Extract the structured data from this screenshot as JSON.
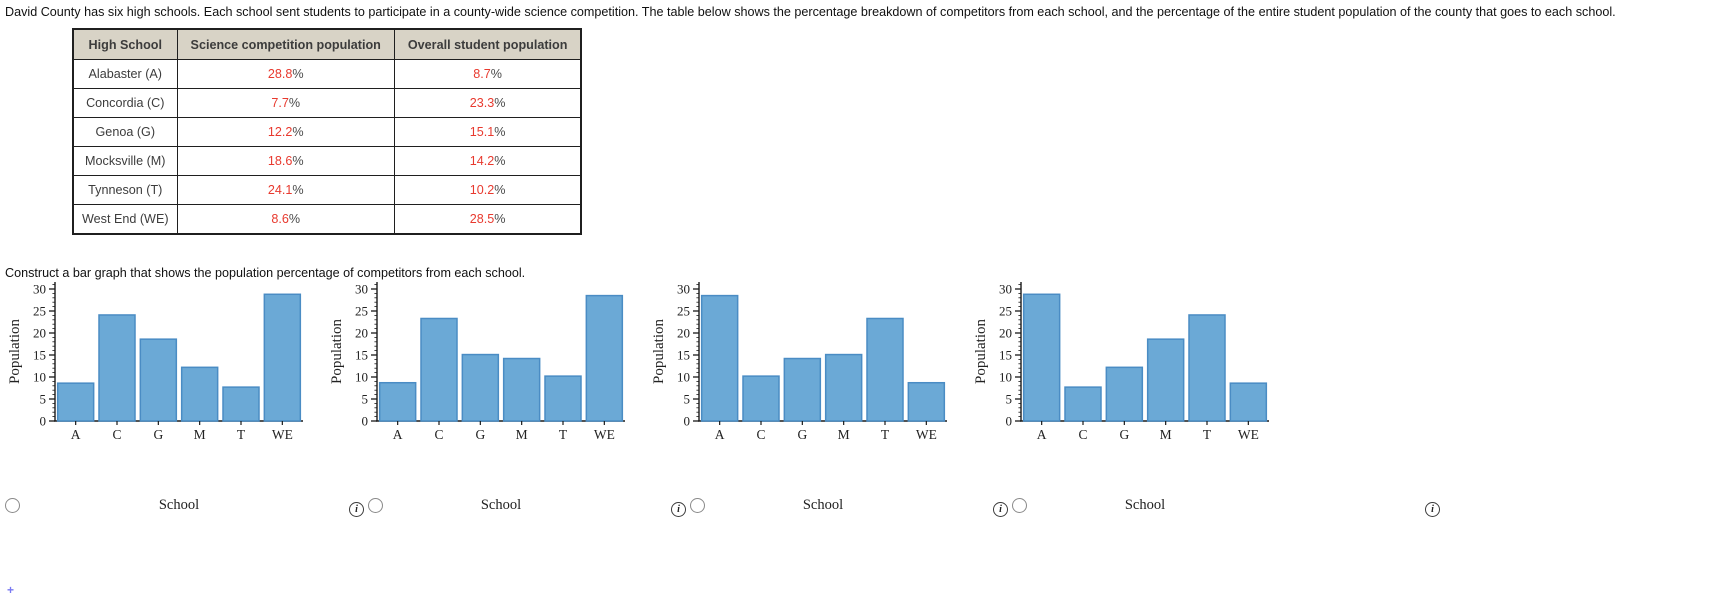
{
  "intro": "David County has six high schools. Each school sent students to participate in a county-wide science competition. The table below shows the percentage breakdown of competitors from each school, and the percentage of the entire student population of the county that goes to each school.",
  "instruction": "Construct a bar graph that shows the population percentage of competitors from each school.",
  "table": {
    "headers": [
      "High School",
      "Science competition population",
      "Overall student population"
    ],
    "rows": [
      {
        "school": "Alabaster (A)",
        "competition": "28.8%",
        "overall": "8.7%"
      },
      {
        "school": "Concordia (C)",
        "competition": "7.7%",
        "overall": "23.3%"
      },
      {
        "school": "Genoa (G)",
        "competition": "12.2%",
        "overall": "15.1%"
      },
      {
        "school": "Mocksville (M)",
        "competition": "18.6%",
        "overall": "14.2%"
      },
      {
        "school": "Tynneson (T)",
        "competition": "24.1%",
        "overall": "10.2%"
      },
      {
        "school": "West End (WE)",
        "competition": "8.6%",
        "overall": "28.5%"
      }
    ]
  },
  "chart_data": [
    {
      "type": "bar",
      "categories": [
        "A",
        "C",
        "G",
        "M",
        "T",
        "WE"
      ],
      "values": [
        8.6,
        24.1,
        18.6,
        12.2,
        7.7,
        28.8
      ],
      "xlabel": "School",
      "ylabel": "Population",
      "ylim": [
        0,
        31.8
      ],
      "yticks": [
        0,
        5,
        10,
        15,
        20,
        25,
        30
      ],
      "grid": false
    },
    {
      "type": "bar",
      "categories": [
        "A",
        "C",
        "G",
        "M",
        "T",
        "WE"
      ],
      "values": [
        8.7,
        23.3,
        15.1,
        14.2,
        10.2,
        28.5
      ],
      "xlabel": "School",
      "ylabel": "Population",
      "ylim": [
        0,
        31.8
      ],
      "yticks": [
        0,
        5,
        10,
        15,
        20,
        25,
        30
      ],
      "grid": false
    },
    {
      "type": "bar",
      "categories": [
        "A",
        "C",
        "G",
        "M",
        "T",
        "WE"
      ],
      "values": [
        28.5,
        10.2,
        14.2,
        15.1,
        23.3,
        8.7
      ],
      "xlabel": "School",
      "ylabel": "Population",
      "ylim": [
        0,
        31.8
      ],
      "yticks": [
        0,
        5,
        10,
        15,
        20,
        25,
        30
      ],
      "grid": false
    },
    {
      "type": "bar",
      "categories": [
        "A",
        "C",
        "G",
        "M",
        "T",
        "WE"
      ],
      "values": [
        28.8,
        7.7,
        12.2,
        18.6,
        24.1,
        8.6
      ],
      "xlabel": "School",
      "ylabel": "Population",
      "ylim": [
        0,
        31.8
      ],
      "yticks": [
        0,
        5,
        10,
        15,
        20,
        25,
        30
      ],
      "grid": false
    }
  ],
  "info_icon_glyph": "i",
  "footnote_marker": "+",
  "colors": {
    "bar_fill": "#6BA9D6",
    "bar_stroke": "#4A8CC4",
    "accent_red": "#E8392E",
    "percent_gray": "#4a4a4a",
    "header_bg": "#D8D3C6",
    "axis": "#1a1a1a"
  }
}
